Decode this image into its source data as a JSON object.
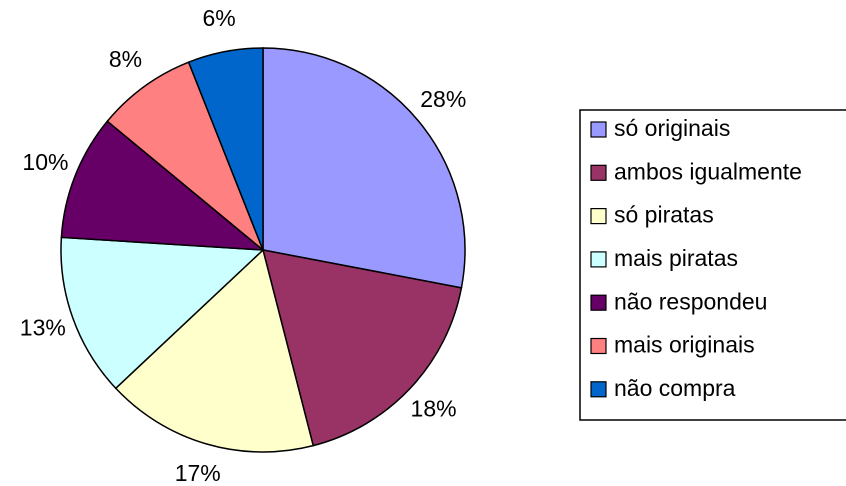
{
  "chart_data": {
    "type": "pie",
    "categories": [
      "só originais",
      "ambos igualmente",
      "só piratas",
      "mais piratas",
      "não respondeu",
      "mais originais",
      "não compra"
    ],
    "values": [
      28,
      18,
      17,
      13,
      10,
      8,
      6
    ],
    "value_labels": [
      "28%",
      "18%",
      "17%",
      "13%",
      "10%",
      "8%",
      "6%"
    ],
    "colors": [
      "#9999ff",
      "#993366",
      "#ffffcc",
      "#ccffff",
      "#660066",
      "#ff8080",
      "#0066cc"
    ],
    "legend": "right"
  }
}
